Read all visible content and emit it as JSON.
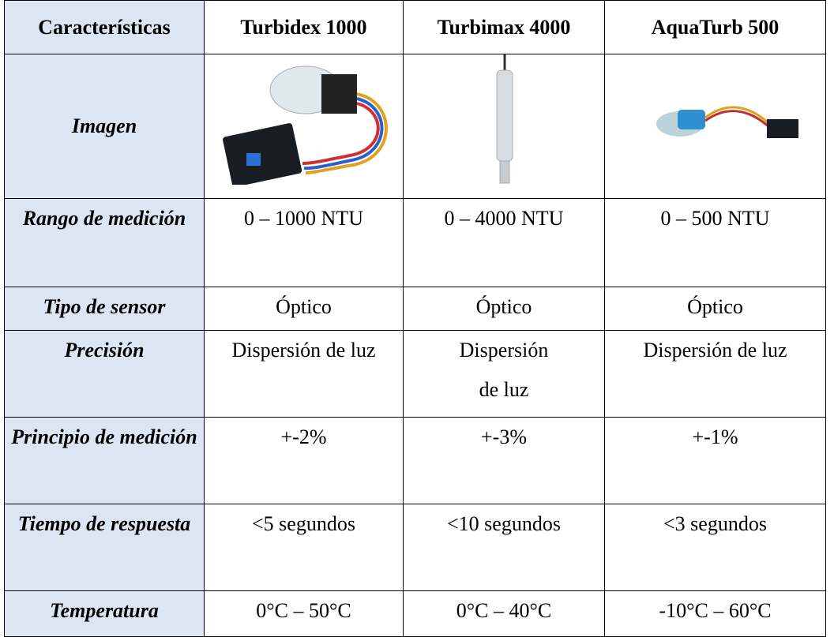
{
  "table": {
    "header": [
      "Características",
      "Turbidex 1000",
      "Turbimax 4000",
      "AquaTurb 500"
    ],
    "image_row": {
      "label": "Imagen"
    },
    "rows": [
      [
        "Rango de medición",
        "0 – 1000 NTU",
        "0 – 4000 NTU",
        "0 – 500 NTU"
      ],
      [
        "Tipo de sensor",
        "Óptico",
        "Óptico",
        "Óptico"
      ],
      [
        "Precisión",
        "Dispersión de luz",
        "Dispersión de luz",
        "Dispersión de luz"
      ],
      [
        "Principio de medición",
        "+-2%",
        "+-3%",
        "+-1%"
      ],
      [
        "Tiempo de respuesta",
        "<5 segundos",
        "<10 segundos",
        "<3 segundos"
      ],
      [
        "Temperatura",
        "0°C – 50°C",
        "0°C – 40°C",
        "-10°C – 60°C"
      ]
    ]
  }
}
